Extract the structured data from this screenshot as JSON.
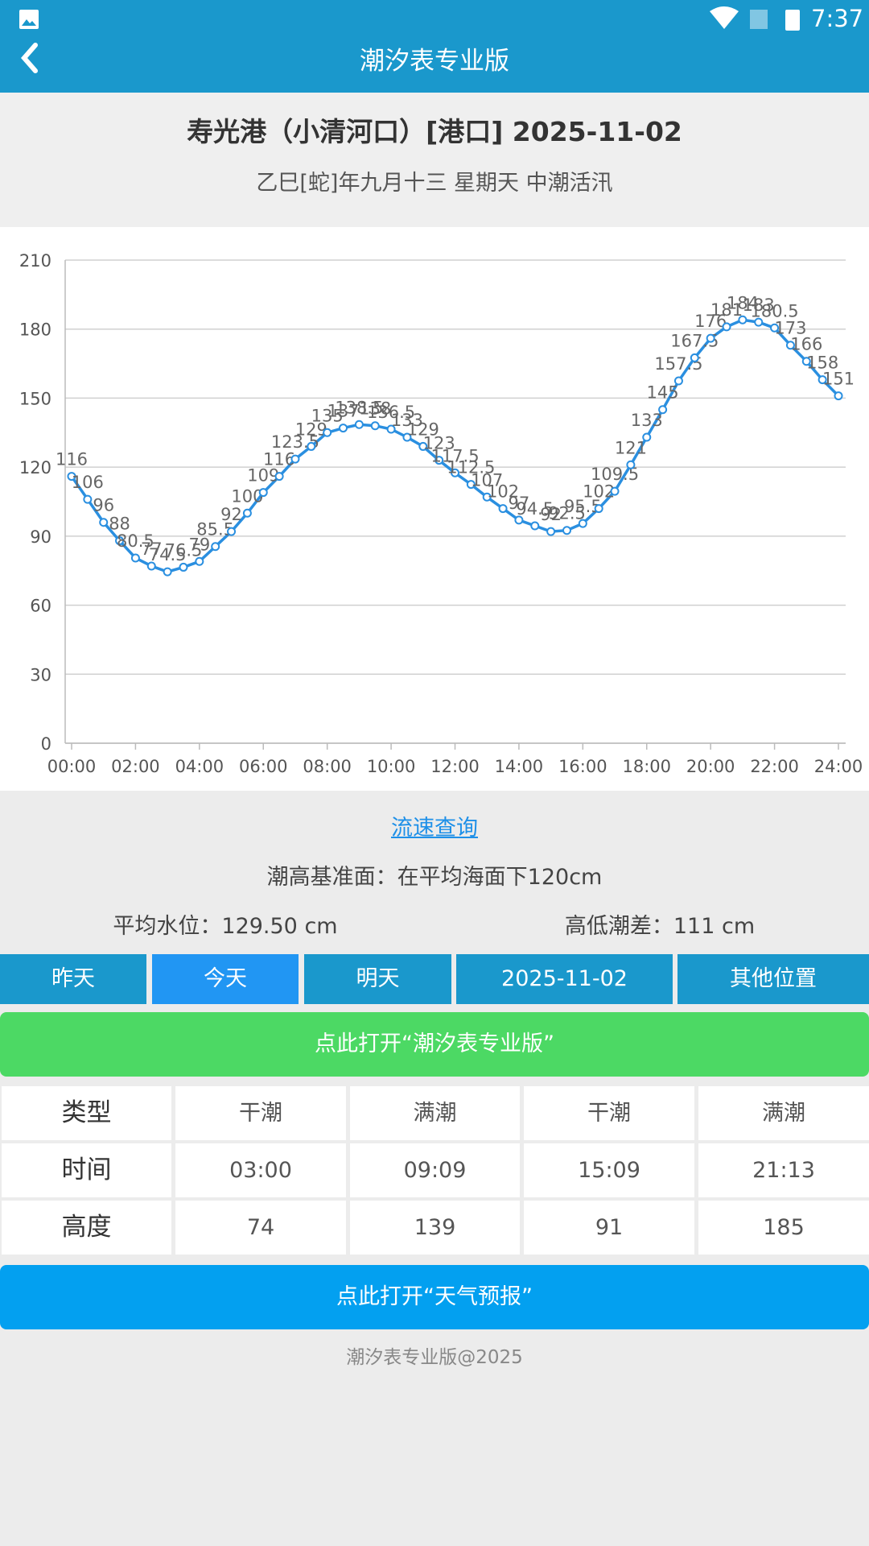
{
  "status_bar": {
    "time": "7:37"
  },
  "header": {
    "title": "潮汐表专业版"
  },
  "station": {
    "title": "寿光港（小清河口）[港口]  2025-11-02",
    "subtitle": "乙巳[蛇]年九月十三   星期天   中潮活汛"
  },
  "chart_data": {
    "type": "line",
    "color": "#2a8fe0",
    "grid": true,
    "categories": [
      "00:00",
      null,
      null,
      null,
      "02:00",
      null,
      null,
      null,
      "04:00",
      null,
      null,
      null,
      "06:00",
      null,
      null,
      null,
      "08:00",
      null,
      null,
      null,
      "10:00",
      null,
      null,
      null,
      "12:00",
      null,
      null,
      null,
      "14:00",
      null,
      null,
      null,
      "16:00",
      null,
      null,
      null,
      "18:00",
      null,
      null,
      null,
      "20:00",
      null,
      null,
      null,
      "22:00",
      null,
      null,
      null,
      "24:00"
    ],
    "values": [
      116,
      106,
      96,
      88,
      80.5,
      77,
      74.5,
      76.5,
      79,
      85.5,
      92,
      100,
      109,
      116,
      123.5,
      129,
      135,
      137,
      138.5,
      138,
      136.5,
      133,
      129,
      123,
      117.5,
      112.5,
      107,
      102,
      97,
      94.5,
      92,
      92.5,
      95.5,
      102,
      109.5,
      121,
      133,
      145,
      157.5,
      167.5,
      176,
      181,
      184,
      183,
      180.5,
      173,
      166,
      158,
      151
    ],
    "ylim": [
      0,
      210
    ],
    "yticks": [
      0,
      30,
      60,
      90,
      120,
      150,
      180,
      210
    ]
  },
  "info": {
    "link": "流速查询",
    "datum": "潮高基准面：在平均海面下120cm",
    "average": "平均水位：129.50 cm",
    "range": "高低潮差：111 cm"
  },
  "buttons": [
    "昨天",
    "今天",
    "明天",
    "2025-11-02",
    "其他位置"
  ],
  "open_app": "点此打开“潮汐表专业版”",
  "table": {
    "rows": [
      [
        "类型",
        "干潮",
        "满潮",
        "干潮",
        "满潮"
      ],
      [
        "时间",
        "03:00",
        "09:09",
        "15:09",
        "21:13"
      ],
      [
        "高度",
        "74",
        "139",
        "91",
        "185"
      ]
    ]
  },
  "open_weather": "点此打开“天气预报”",
  "footer": "潮汐表专业版@2025"
}
